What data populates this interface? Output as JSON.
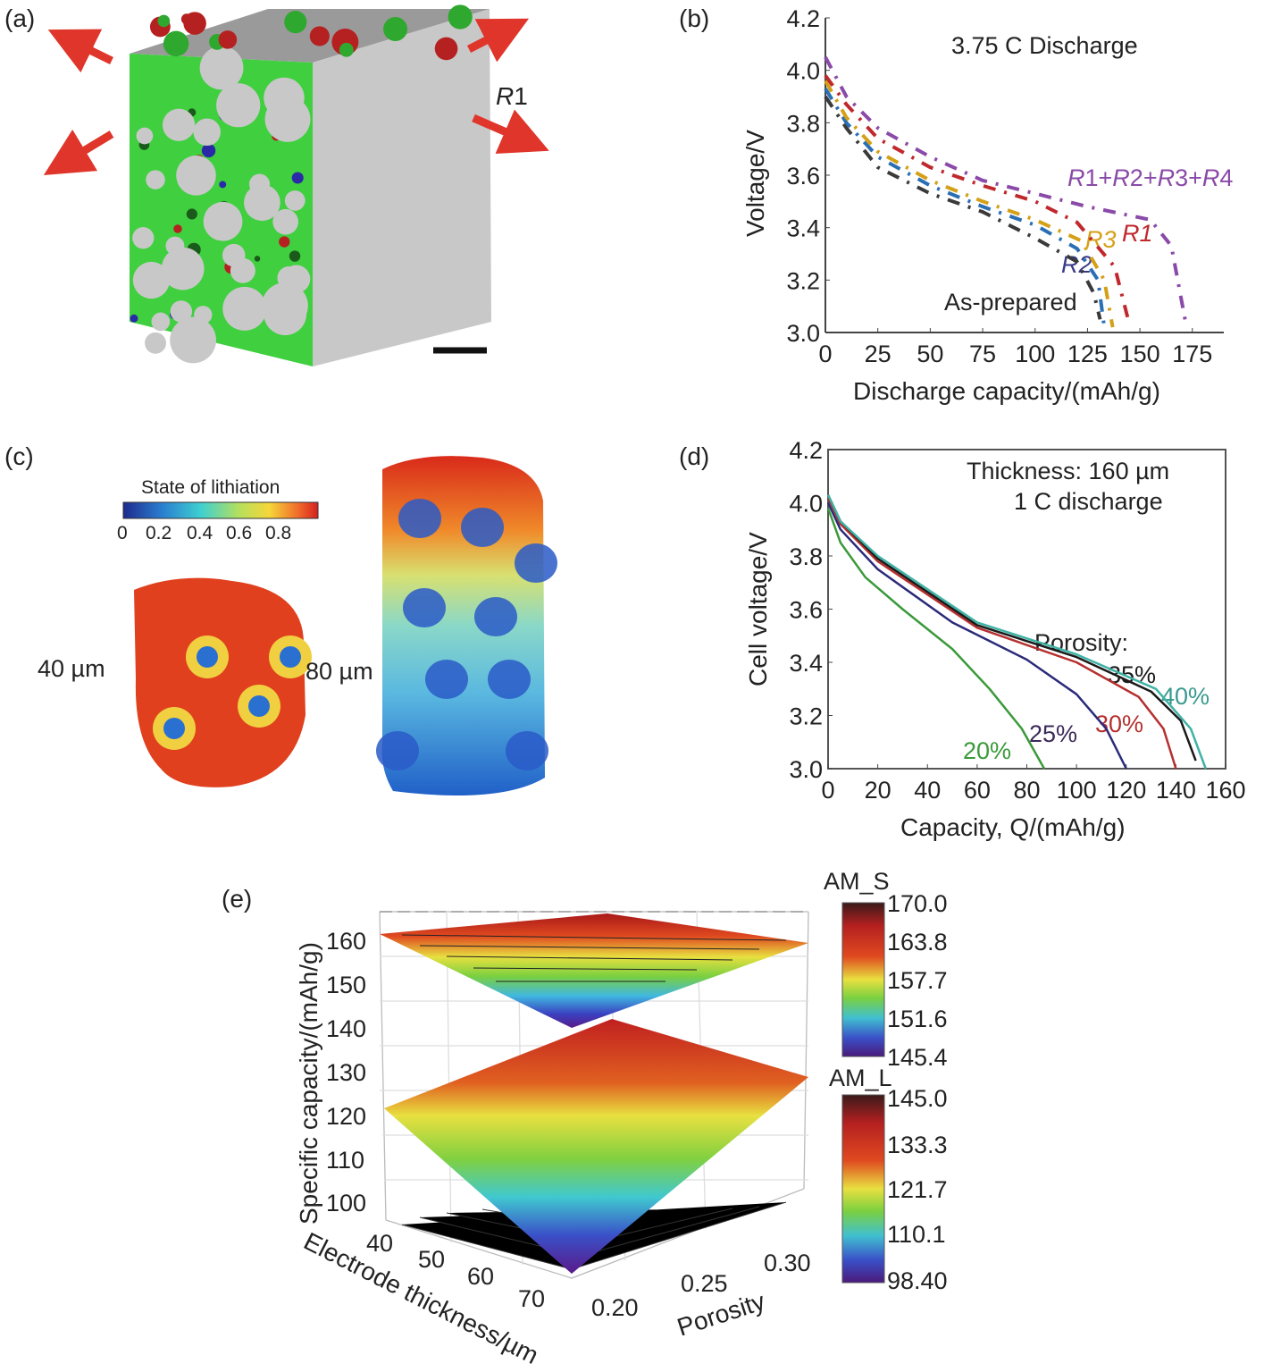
{
  "panels": {
    "a": {
      "label": "(a)",
      "annotation": "R1",
      "annotation_italic": "R",
      "annotation_num": "1"
    },
    "c": {
      "label": "(c)",
      "colorbar_title": "State of lithiation",
      "colorbar_ticks": [
        "0",
        "0.2",
        "0.4",
        "0.6",
        "0.8"
      ],
      "left_label": "40 µm",
      "right_label": "80 µm"
    },
    "e": {
      "label": "(e)",
      "ylabel": "Specific capacity/(mAh/g)",
      "yticks": [
        "160",
        "150",
        "140",
        "130",
        "120",
        "110",
        "100"
      ],
      "thickness_label": "Electrode thickness/µm",
      "thickness_ticks": [
        "40",
        "50",
        "60",
        "70"
      ],
      "porosity_label": "Porosity",
      "porosity_ticks": [
        "0.20",
        "0.25",
        "0.30"
      ],
      "colorbars": [
        {
          "title": "AM_S",
          "ticks": [
            "170.0",
            "163.8",
            "157.7",
            "151.6",
            "145.4"
          ]
        },
        {
          "title": "AM_L",
          "ticks": [
            "145.0",
            "133.3",
            "121.7",
            "110.1",
            "98.40"
          ]
        }
      ]
    }
  },
  "chart_data": [
    {
      "id": "b",
      "label": "(b)",
      "type": "line",
      "title": "3.75 C Discharge",
      "xlabel": "Discharge capacity/(mAh/g)",
      "ylabel": "Voltage/V",
      "xlim": [
        0,
        190
      ],
      "ylim": [
        3.0,
        4.2
      ],
      "xticks": [
        "0",
        "25",
        "50",
        "75",
        "100",
        "125",
        "150",
        "175"
      ],
      "yticks": [
        "3.0",
        "3.2",
        "3.4",
        "3.6",
        "3.8",
        "4.0",
        "4.2"
      ],
      "series": [
        {
          "name": "As-prepared",
          "color": "#3a3a3a",
          "x": [
            0,
            10,
            25,
            50,
            75,
            100,
            120,
            128,
            131
          ],
          "y": [
            3.9,
            3.78,
            3.63,
            3.53,
            3.46,
            3.36,
            3.27,
            3.15,
            3.05
          ]
        },
        {
          "name": "R2",
          "color": "#2a6fb5",
          "x": [
            0,
            10,
            25,
            50,
            75,
            100,
            120,
            130,
            133
          ],
          "y": [
            3.93,
            3.8,
            3.67,
            3.56,
            3.48,
            3.41,
            3.32,
            3.2,
            3.02
          ]
        },
        {
          "name": "R3",
          "color": "#d4a017",
          "x": [
            0,
            10,
            25,
            50,
            75,
            100,
            122,
            133,
            137
          ],
          "y": [
            3.96,
            3.82,
            3.69,
            3.58,
            3.5,
            3.43,
            3.35,
            3.2,
            3.02
          ]
        },
        {
          "name": "R1",
          "color": "#c0282d",
          "x": [
            0,
            10,
            25,
            50,
            75,
            100,
            120,
            138,
            145
          ],
          "y": [
            3.98,
            3.87,
            3.74,
            3.63,
            3.56,
            3.5,
            3.42,
            3.25,
            3.03
          ]
        },
        {
          "name": "R1+R2+R3+R4",
          "color": "#8a4aa8",
          "x": [
            0,
            10,
            25,
            50,
            75,
            100,
            125,
            155,
            165,
            172
          ],
          "y": [
            4.05,
            3.9,
            3.78,
            3.67,
            3.58,
            3.53,
            3.48,
            3.43,
            3.33,
            3.03
          ]
        }
      ],
      "annotations": [
        "R1+R2+R3+R4",
        "R3",
        "R1",
        "R2",
        "As-prepared"
      ]
    },
    {
      "id": "d",
      "label": "(d)",
      "type": "line",
      "title": "Thickness: 160 µm",
      "subtitle": "1 C discharge",
      "xlabel": "Capacity, Q/(mAh/g)",
      "ylabel": "Cell voltage/V",
      "xlim": [
        0,
        160
      ],
      "ylim": [
        3.0,
        4.2
      ],
      "xticks": [
        "0",
        "20",
        "40",
        "60",
        "80",
        "100",
        "120",
        "140",
        "160"
      ],
      "yticks": [
        "3.0",
        "3.2",
        "3.4",
        "3.6",
        "3.8",
        "4.0",
        "4.2"
      ],
      "legend_title": "Porosity:",
      "series": [
        {
          "name": "20%",
          "color": "#3a9a3a",
          "x": [
            0,
            5,
            15,
            30,
            50,
            65,
            78,
            87
          ],
          "y": [
            3.98,
            3.85,
            3.72,
            3.6,
            3.45,
            3.3,
            3.15,
            3.0
          ]
        },
        {
          "name": "25%",
          "color": "#2a2a7a",
          "x": [
            0,
            5,
            20,
            50,
            80,
            100,
            112,
            120
          ],
          "y": [
            4.0,
            3.9,
            3.75,
            3.55,
            3.41,
            3.28,
            3.15,
            3.0
          ]
        },
        {
          "name": "30%",
          "color": "#b5302f",
          "x": [
            0,
            5,
            20,
            60,
            100,
            125,
            135,
            140
          ],
          "y": [
            4.02,
            3.92,
            3.78,
            3.53,
            3.4,
            3.27,
            3.15,
            3.0
          ]
        },
        {
          "name": "35%",
          "color": "#1a1a1a",
          "x": [
            0,
            5,
            20,
            60,
            100,
            130,
            142,
            148
          ],
          "y": [
            4.03,
            3.93,
            3.79,
            3.54,
            3.42,
            3.29,
            3.18,
            3.03
          ]
        },
        {
          "name": "40%",
          "color": "#3fb3a5",
          "x": [
            0,
            5,
            20,
            60,
            100,
            132,
            146,
            152
          ],
          "y": [
            4.03,
            3.93,
            3.8,
            3.55,
            3.43,
            3.3,
            3.15,
            3.0
          ]
        }
      ]
    }
  ]
}
